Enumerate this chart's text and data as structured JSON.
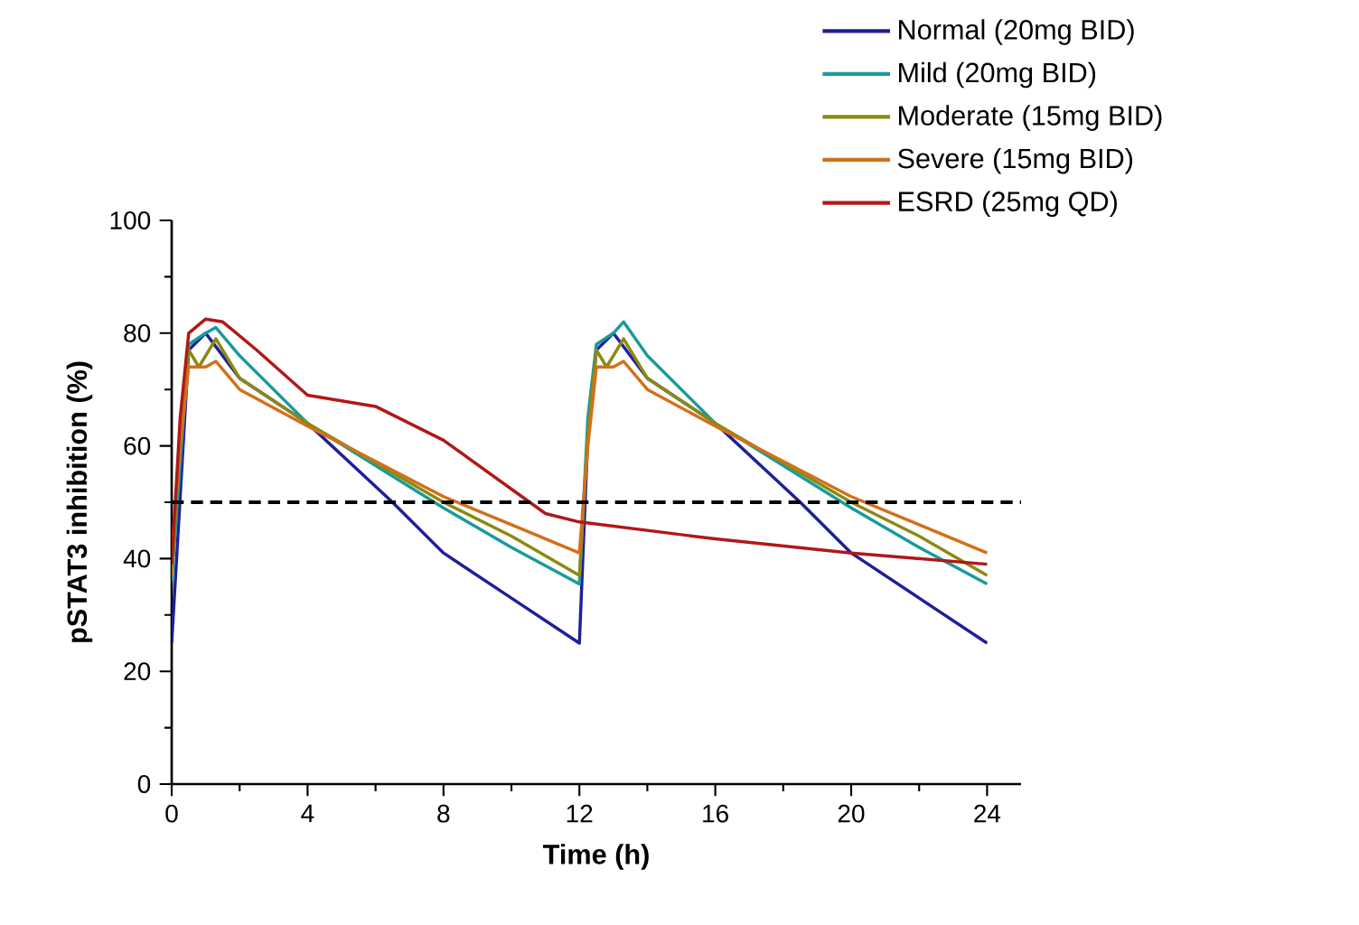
{
  "chart_data": {
    "type": "line",
    "xlabel": "Time (h)",
    "ylabel": "pSTAT3 inhibition (%)",
    "xlim": [
      0,
      25
    ],
    "ylim": [
      0,
      100
    ],
    "xticks": [
      0,
      4,
      8,
      12,
      16,
      20,
      24
    ],
    "yticks": [
      0,
      20,
      40,
      60,
      80,
      100
    ],
    "grid": false,
    "legend": "top right",
    "marker": "none",
    "line_style": "solid",
    "ref_lines": [
      {
        "axis": "y",
        "value": 50,
        "color": "#000000",
        "line_style": "dashed"
      }
    ],
    "series": [
      {
        "name": "Normal (20mg BID)",
        "color": "#1f1f9a",
        "x": [
          0,
          0.5,
          1,
          2,
          4,
          6.5,
          8,
          10,
          12,
          12.25,
          12.5,
          13,
          14,
          16,
          18.5,
          20,
          22,
          24
        ],
        "values": [
          25,
          77,
          80,
          72,
          64,
          50,
          41,
          33,
          25,
          62,
          77,
          80,
          72,
          64,
          50,
          41,
          33,
          25
        ]
      },
      {
        "name": "Mild (20mg BID)",
        "color": "#1a9a9a",
        "x": [
          0,
          0.5,
          1,
          1.3,
          2,
          4,
          8,
          10,
          12,
          12.25,
          12.5,
          13,
          13.3,
          14,
          16,
          20,
          22,
          24
        ],
        "values": [
          36,
          78,
          80,
          81,
          76,
          64,
          49,
          42,
          35.5,
          65,
          78,
          80,
          82,
          76,
          64,
          49,
          42,
          35.5
        ]
      },
      {
        "name": "Moderate (15mg BID)",
        "color": "#8a8a12",
        "x": [
          0,
          0.25,
          0.5,
          0.8,
          1.3,
          2,
          4,
          8,
          10,
          12,
          12.25,
          12.5,
          12.8,
          13.3,
          14,
          16,
          20,
          22,
          24
        ],
        "values": [
          37,
          62,
          77,
          74,
          79,
          72,
          64,
          50,
          44,
          37,
          62,
          77,
          74,
          79,
          72,
          64,
          50,
          44,
          37
        ]
      },
      {
        "name": "Severe (15mg BID)",
        "color": "#d2701a",
        "x": [
          0,
          0.25,
          0.5,
          1,
          1.3,
          2,
          4,
          8,
          10,
          12,
          12.25,
          12.5,
          13,
          13.3,
          14,
          16,
          20,
          22,
          24
        ],
        "values": [
          41,
          60,
          74,
          74,
          75,
          70,
          63.5,
          51,
          46,
          41,
          60,
          74,
          74,
          75,
          70,
          63.5,
          51,
          46,
          41
        ]
      },
      {
        "name": "ESRD (25mg QD)",
        "color": "#b01818",
        "x": [
          0,
          0.25,
          0.5,
          1,
          1.5,
          2.5,
          4,
          6,
          8,
          11,
          12,
          16,
          20,
          24
        ],
        "values": [
          39,
          65,
          80,
          82.5,
          82,
          77,
          69,
          67,
          61,
          48,
          46.5,
          43.5,
          41,
          39
        ]
      }
    ]
  }
}
